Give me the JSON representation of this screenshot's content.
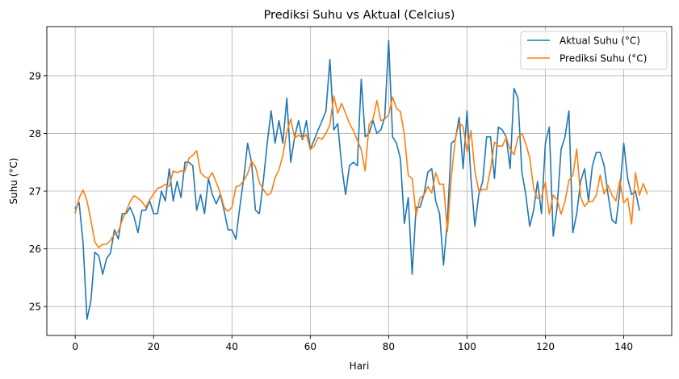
{
  "chart_data": {
    "type": "line",
    "title": "Prediksi Suhu vs Aktual (Celcius)",
    "xlabel": "Hari",
    "ylabel": "Suhu (°C)",
    "xlim": [
      -7.25,
      152.25
    ],
    "ylim": [
      24.5,
      29.85
    ],
    "xticks": [
      0,
      20,
      40,
      60,
      80,
      100,
      120,
      140
    ],
    "yticks": [
      25,
      26,
      27,
      28,
      29
    ],
    "grid": true,
    "legend_position": "top-right",
    "series": [
      {
        "name": "Aktual Suhu (°C)",
        "color": "#1f77b4",
        "values": [
          26.7,
          26.8,
          26.1,
          24.78,
          25.1,
          25.94,
          25.88,
          25.56,
          25.83,
          25.93,
          26.33,
          26.17,
          26.61,
          26.61,
          26.72,
          26.56,
          26.28,
          26.67,
          26.67,
          26.83,
          26.61,
          26.61,
          27.0,
          26.83,
          27.39,
          26.83,
          27.17,
          26.89,
          27.5,
          27.5,
          27.44,
          26.67,
          26.94,
          26.61,
          27.22,
          26.94,
          26.78,
          26.94,
          26.67,
          26.33,
          26.33,
          26.17,
          26.72,
          27.22,
          27.83,
          27.5,
          26.67,
          26.61,
          27.17,
          27.83,
          28.39,
          27.83,
          28.22,
          27.83,
          28.61,
          27.5,
          27.94,
          28.22,
          27.89,
          28.22,
          27.72,
          27.89,
          28.06,
          28.22,
          28.39,
          29.28,
          28.06,
          28.17,
          27.44,
          26.94,
          27.44,
          27.5,
          27.44,
          28.94,
          27.94,
          28.0,
          28.22,
          28.0,
          28.06,
          28.28,
          29.61,
          27.94,
          27.83,
          27.56,
          26.44,
          26.89,
          25.56,
          26.72,
          26.72,
          26.94,
          27.33,
          27.39,
          26.83,
          26.61,
          25.72,
          26.5,
          27.83,
          27.89,
          28.28,
          27.39,
          28.39,
          27.22,
          26.39,
          26.94,
          27.17,
          27.94,
          27.94,
          27.22,
          28.11,
          28.06,
          27.94,
          27.39,
          28.78,
          28.61,
          27.33,
          26.94,
          26.39,
          26.67,
          27.17,
          26.61,
          27.83,
          28.11,
          26.22,
          26.72,
          27.72,
          27.94,
          28.39,
          26.28,
          26.61,
          27.17,
          27.39,
          26.83,
          27.44,
          27.67,
          27.67,
          27.44,
          26.94,
          26.5,
          26.44,
          27.0,
          27.83,
          27.22,
          26.94,
          27.0,
          26.67
        ]
      },
      {
        "name": "Prediksi Suhu (°C)",
        "color": "#ff7f0e",
        "values": [
          26.62,
          26.88,
          27.02,
          26.83,
          26.5,
          26.12,
          26.02,
          26.08,
          26.08,
          26.15,
          26.25,
          26.3,
          26.5,
          26.65,
          26.82,
          26.92,
          26.88,
          26.82,
          26.72,
          26.85,
          26.95,
          27.05,
          27.07,
          27.12,
          27.08,
          27.35,
          27.32,
          27.35,
          27.35,
          27.57,
          27.62,
          27.7,
          27.32,
          27.25,
          27.22,
          27.32,
          27.15,
          26.97,
          26.72,
          26.65,
          26.72,
          27.07,
          27.1,
          27.18,
          27.3,
          27.52,
          27.42,
          27.15,
          27.03,
          26.93,
          26.97,
          27.23,
          27.37,
          27.62,
          28.02,
          28.25,
          27.92,
          27.97,
          27.92,
          27.98,
          27.72,
          27.78,
          27.93,
          27.9,
          28.0,
          28.15,
          28.65,
          28.35,
          28.52,
          28.35,
          28.17,
          28.05,
          27.88,
          27.72,
          27.35,
          28.15,
          28.25,
          28.57,
          28.22,
          28.25,
          28.32,
          28.63,
          28.43,
          28.38,
          27.98,
          27.27,
          27.22,
          26.58,
          26.88,
          26.93,
          27.08,
          26.97,
          27.32,
          27.12,
          27.12,
          26.3,
          27.25,
          27.9,
          28.18,
          28.12,
          27.68,
          28.05,
          27.35,
          27.0,
          27.03,
          27.03,
          27.38,
          27.85,
          27.78,
          27.78,
          27.93,
          27.73,
          27.63,
          27.93,
          28.0,
          27.82,
          27.58,
          27.05,
          26.87,
          26.9,
          27.15,
          26.6,
          26.93,
          26.85,
          26.6,
          26.82,
          27.18,
          27.27,
          27.73,
          26.9,
          26.73,
          26.82,
          26.82,
          26.93,
          27.28,
          26.95,
          27.1,
          26.93,
          26.83,
          27.18,
          26.8,
          26.88,
          26.43,
          27.32,
          26.93,
          27.13,
          26.95
        ]
      }
    ]
  }
}
